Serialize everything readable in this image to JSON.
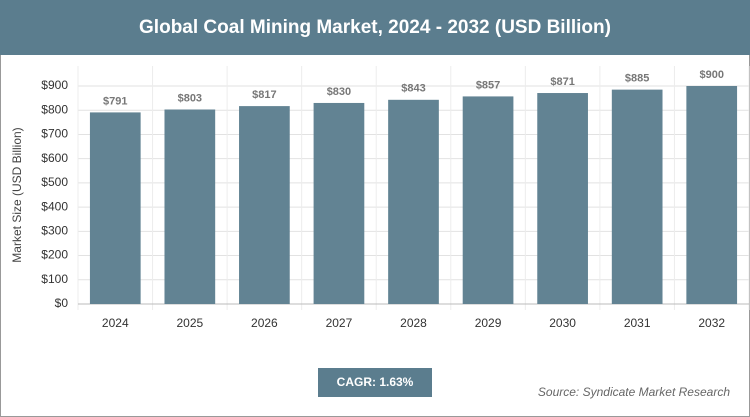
{
  "chart_data": {
    "type": "bar",
    "title": "Global Coal Mining Market, 2024 - 2032 (USD Billion)",
    "y_label": "Market Size (USD Billion)",
    "categories": [
      "2024",
      "2025",
      "2026",
      "2027",
      "2028",
      "2029",
      "2030",
      "2031",
      "2032"
    ],
    "values": [
      791,
      803,
      817,
      830,
      843,
      857,
      871,
      885,
      900
    ],
    "value_labels": [
      "$791",
      "$803",
      "$817",
      "$830",
      "$843",
      "$857",
      "$871",
      "$885",
      "$900"
    ],
    "color": "#628393",
    "ylim": [
      0,
      900
    ],
    "yticks": [
      {
        "value": 0,
        "label": "$0"
      },
      {
        "value": 100,
        "label": "$100"
      },
      {
        "value": 200,
        "label": "$200"
      },
      {
        "value": 300,
        "label": "$300"
      },
      {
        "value": 400,
        "label": "$400"
      },
      {
        "value": 500,
        "label": "$500"
      },
      {
        "value": 600,
        "label": "$600"
      },
      {
        "value": 700,
        "label": "$700"
      },
      {
        "value": 800,
        "label": "$800"
      },
      {
        "value": 900,
        "label": "$900"
      }
    ],
    "grid": true,
    "cagr": "CAGR: 1.63%",
    "source": "Source: Syndicate Market Research"
  }
}
